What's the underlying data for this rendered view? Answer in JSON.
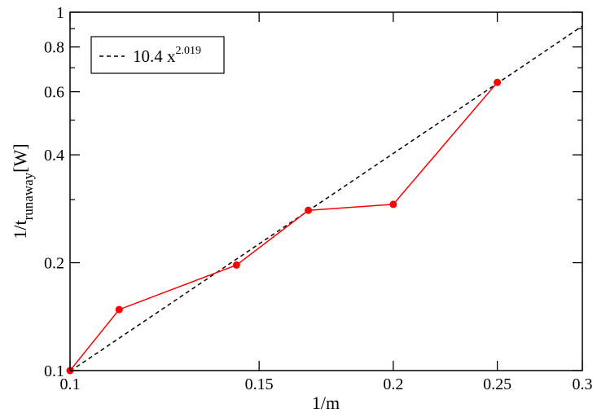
{
  "chart_data": {
    "type": "line",
    "title": "",
    "xlabel": "1/m",
    "ylabel": {
      "main": "1/t",
      "sub": "runaway",
      "suffix": "[W]"
    },
    "xscale": "log",
    "yscale": "log",
    "xlim": [
      0.1,
      0.3
    ],
    "ylim": [
      0.1,
      1
    ],
    "xticks": [
      {
        "value": 0.1,
        "label": "0.1"
      },
      {
        "value": 0.15,
        "label": "0.15"
      },
      {
        "value": 0.2,
        "label": "0.2"
      },
      {
        "value": 0.25,
        "label": "0.25"
      },
      {
        "value": 0.3,
        "label": "0.3"
      }
    ],
    "yticks": [
      {
        "value": 0.1,
        "label": "0.1"
      },
      {
        "value": 0.2,
        "label": "0.2"
      },
      {
        "value": 0.4,
        "label": "0.4"
      },
      {
        "value": 0.6,
        "label": "0.6"
      },
      {
        "value": 0.8,
        "label": "0.8"
      },
      {
        "value": 1,
        "label": "1"
      }
    ],
    "y_minor_ticks": [
      0.3,
      0.5,
      0.7,
      0.9
    ],
    "grid": false,
    "legend_position": "top-left",
    "series": [
      {
        "color": "#ff0000",
        "style": "solid-with-markers",
        "x": [
          0.1,
          0.1111,
          0.1429,
          0.1667,
          0.2,
          0.25
        ],
        "y": [
          0.1,
          0.148,
          0.197,
          0.28,
          0.291,
          0.637
        ]
      },
      {
        "name": "10.4 x^2.019",
        "label_base": "10.4 x",
        "label_exp": "2.019",
        "color": "#000000",
        "style": "dashed",
        "coef": 10.4,
        "exponent": 2.019
      }
    ]
  }
}
